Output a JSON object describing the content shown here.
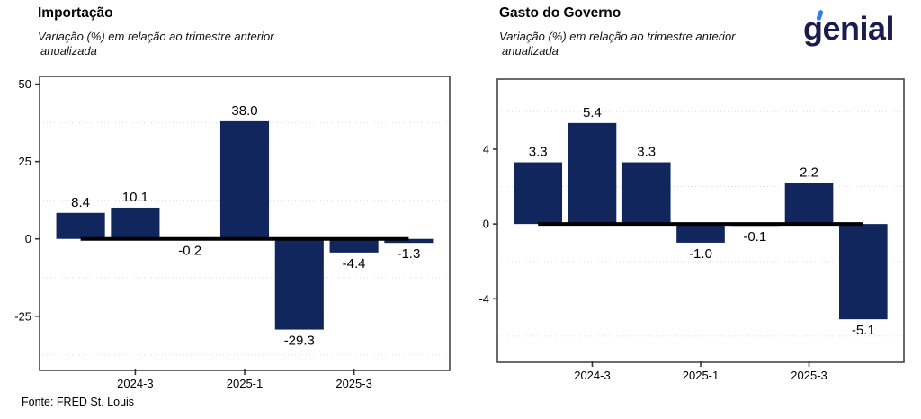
{
  "page": {
    "background": "#ffffff"
  },
  "branding": {
    "logo_text": "genial",
    "logo_color": "#1b1b4f",
    "logo_accent_color": "#2e7cf6"
  },
  "footer": {
    "source": "Fonte: FRED St. Louis"
  },
  "chart_data": [
    {
      "type": "bar",
      "title": "Importação",
      "subtitle_line1": "Variação (%) em relação ao trimestre anterior",
      "subtitle_line2": "anualizada",
      "values": [
        8.4,
        10.1,
        -0.2,
        38.0,
        -29.3,
        -4.4,
        -1.3
      ],
      "data_labels": [
        "8.4",
        "10.1",
        "-0.2",
        "38.0",
        "-29.3",
        "-4.4",
        "-1.3"
      ],
      "x_ticks": [
        {
          "index": 1,
          "label": "2024-3"
        },
        {
          "index": 3,
          "label": "2025-1"
        },
        {
          "index": 5,
          "label": "2025-3"
        }
      ],
      "y_ticks": [
        50,
        25,
        0,
        -25
      ],
      "minor_gridlines": [
        37.5,
        12.5,
        -12.5,
        -37.5
      ],
      "ylim": [
        -42.5,
        52.5
      ],
      "bar_color": "#10265c",
      "grid": "dotted-minor",
      "legend_position": "none"
    },
    {
      "type": "bar",
      "title": "Gasto do Governo",
      "subtitle_line1": "Variação (%) em relação ao trimestre anterior",
      "subtitle_line2": "anualizada",
      "values": [
        3.3,
        5.4,
        3.3,
        -1.0,
        -0.1,
        2.2,
        -5.1
      ],
      "data_labels": [
        "3.3",
        "5.4",
        "3.3",
        "-1.0",
        "-0.1",
        "2.2",
        "-5.1"
      ],
      "x_ticks": [
        {
          "index": 1,
          "label": "2024-3"
        },
        {
          "index": 3,
          "label": "2025-1"
        },
        {
          "index": 5,
          "label": "2025-3"
        }
      ],
      "y_ticks": [
        4,
        0,
        -4
      ],
      "minor_gridlines": [
        6,
        2,
        -2,
        -6
      ],
      "ylim": [
        -7.4,
        7.75
      ],
      "bar_color": "#10265c",
      "grid": "dotted-minor",
      "legend_position": "none"
    }
  ]
}
